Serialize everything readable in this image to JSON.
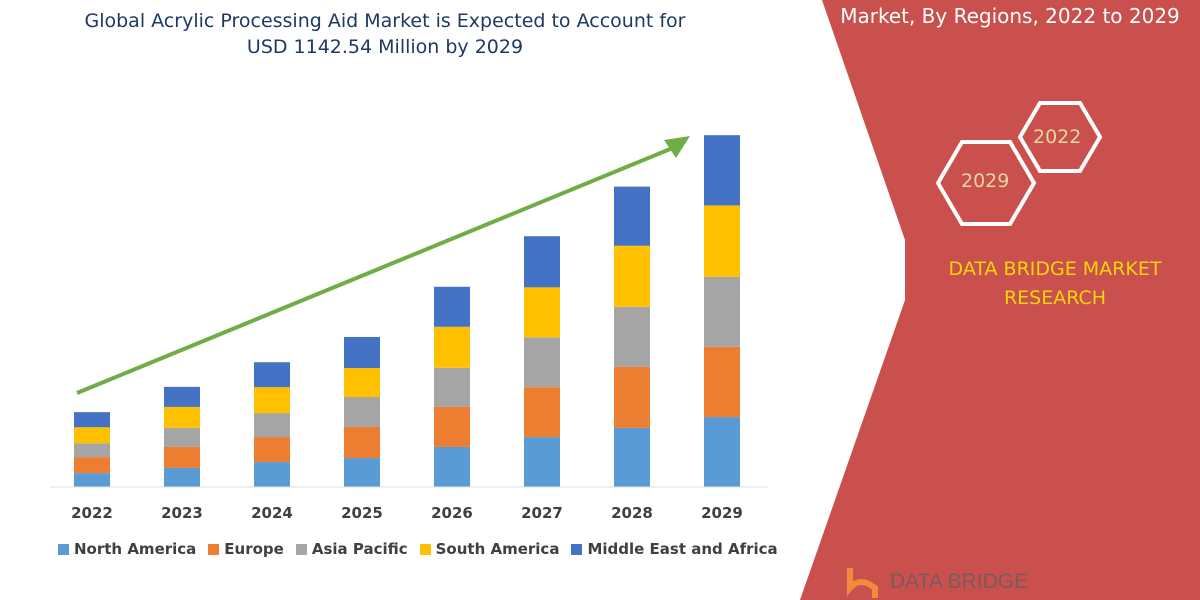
{
  "header": {
    "title_line1": "Global Acrylic Processing Aid Market is Expected to Account for",
    "title_line2": "USD 1142.54 Million by 2029"
  },
  "side_panel": {
    "title": "Market, By Regions, 2022 to 2029",
    "hex_a": "2022",
    "hex_b": "2029",
    "brand_line1": "DATA BRIDGE MARKET",
    "brand_line2": "RESEARCH",
    "logo_text": "DATA BRIDGE",
    "panel_color": "#c9504c",
    "brand_color": "#f7d40a"
  },
  "chart_data": {
    "type": "bar",
    "stacked": true,
    "categories": [
      "2022",
      "2023",
      "2024",
      "2025",
      "2026",
      "2027",
      "2028",
      "2029"
    ],
    "series": [
      {
        "name": "North America",
        "color": "#5b9bd5",
        "values": [
          45,
          62,
          81,
          94,
          130,
          162,
          192,
          227
        ]
      },
      {
        "name": "Europe",
        "color": "#ed7d31",
        "values": [
          52,
          68,
          81,
          101,
          130,
          162,
          198,
          228
        ]
      },
      {
        "name": "Asia Pacific",
        "color": "#a5a5a5",
        "values": [
          45,
          62,
          78,
          97,
          127,
          162,
          195,
          227
        ]
      },
      {
        "name": "South America",
        "color": "#ffc000",
        "values": [
          52,
          68,
          84,
          94,
          133,
          162,
          198,
          232
        ]
      },
      {
        "name": "Middle East and Africa",
        "color": "#4472c4",
        "values": [
          49,
          65,
          81,
          101,
          130,
          166,
          192,
          228
        ]
      }
    ],
    "ylim": [
      0,
      1142.54
    ],
    "grid": false,
    "legend": "bottom",
    "trend_arrow_color": "#70ad47"
  }
}
